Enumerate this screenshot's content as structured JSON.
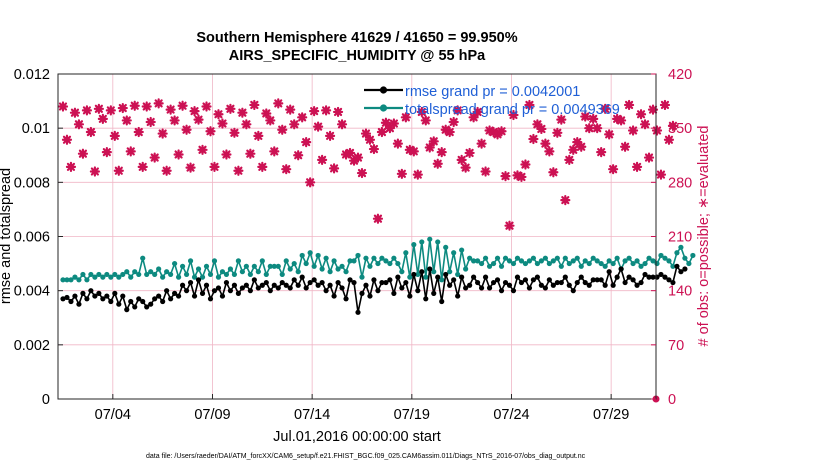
{
  "chart_data": {
    "type": "line",
    "title": "Southern Hemisphere 41629 / 41650 = 99.950%",
    "subtitle": "AIRS_SPECIFIC_HUMIDITY @ 55 hPa",
    "xlabel": "Jul.01,2016 00:00:00 start",
    "ylabel": "rmse and totalspread",
    "ylabel_right": "# of obs: o=possible; ∗=evaluated",
    "x_tick_labels": [
      "07/04",
      "07/09",
      "07/14",
      "07/19",
      "07/24",
      "07/29"
    ],
    "x_tick_days": [
      3.5,
      8.5,
      13.5,
      18.5,
      23.5,
      28.5
    ],
    "xlim": [
      0.75,
      30.75
    ],
    "ylim": [
      0,
      0.012
    ],
    "y_ticks": [
      "0",
      "0.002",
      "0.004",
      "0.006",
      "0.008",
      "0.01",
      "0.012"
    ],
    "ylim_right": [
      0,
      420
    ],
    "y_ticks_right": [
      "0",
      "70",
      "140",
      "210",
      "280",
      "350",
      "420"
    ],
    "grid": true,
    "legend": "top-right",
    "footnote": "data file: /Users/raeder/DAI/ATM_forcXX/CAM6_setup/f.e21.FHIST_BGC.f09_025.CAM6assim.011/Diags_NTrS_2016-07/obs_diag_output.nc",
    "colors": {
      "rmse": "#000000",
      "totalspread": "#0d8a80",
      "obs": "#cc1153"
    },
    "series": [
      {
        "name": "rmse grand pr = 0.0042001",
        "axis": "left",
        "values": [
          0.0037,
          0.00375,
          0.0036,
          0.0038,
          0.0035,
          0.0039,
          0.0037,
          0.004,
          0.0038,
          0.0039,
          0.0037,
          0.0038,
          0.0036,
          0.0039,
          0.0035,
          0.0038,
          0.0033,
          0.0036,
          0.0034,
          0.0037,
          0.0036,
          0.0034,
          0.0035,
          0.0037,
          0.0038,
          0.0036,
          0.004,
          0.0037,
          0.0039,
          0.0038,
          0.0042,
          0.004,
          0.0043,
          0.0038,
          0.0044,
          0.0039,
          0.0042,
          0.0037,
          0.004,
          0.0041,
          0.0038,
          0.0043,
          0.004,
          0.0042,
          0.0039,
          0.0041,
          0.0042,
          0.004,
          0.0044,
          0.0041,
          0.0042,
          0.0043,
          0.004,
          0.0042,
          0.0041,
          0.0043,
          0.0042,
          0.0041,
          0.0044,
          0.0042,
          0.0045,
          0.0041,
          0.0043,
          0.0044,
          0.0042,
          0.0043,
          0.004,
          0.0042,
          0.0038,
          0.0043,
          0.0041,
          0.0037,
          0.0044,
          0.0043,
          0.0032,
          0.0039,
          0.0042,
          0.0038,
          0.0044,
          0.004,
          0.0043,
          0.0043,
          0.0044,
          0.0039,
          0.0045,
          0.0041,
          0.0043,
          0.0038,
          0.0046,
          0.004,
          0.0047,
          0.0037,
          0.0048,
          0.0039,
          0.0045,
          0.0036,
          0.0046,
          0.0042,
          0.0044,
          0.0038,
          0.0045,
          0.0041,
          0.0042,
          0.0045,
          0.0043,
          0.0041,
          0.0045,
          0.0041,
          0.0043,
          0.0044,
          0.004,
          0.0043,
          0.0042,
          0.004,
          0.0045,
          0.0043,
          0.0044,
          0.0041,
          0.0044,
          0.0045,
          0.0042,
          0.0041,
          0.0044,
          0.0042,
          0.0043,
          0.0043,
          0.0045,
          0.0042,
          0.004,
          0.0043,
          0.0045,
          0.0043,
          0.0042,
          0.0044,
          0.0044,
          0.0044,
          0.0042,
          0.0047,
          0.0042,
          0.0045,
          0.0048,
          0.0043,
          0.0045,
          0.0044,
          0.0042,
          0.0043,
          0.0046,
          0.0045,
          0.0045,
          0.0045,
          0.0046,
          0.0045,
          0.0044,
          0.0043,
          0.0049,
          0.0047,
          0.0048
        ]
      },
      {
        "name": "totalspread grand pr = 0.0049369",
        "axis": "left",
        "values": [
          0.0044,
          0.0044,
          0.0044,
          0.0045,
          0.0044,
          0.0046,
          0.0044,
          0.0046,
          0.0045,
          0.0046,
          0.0045,
          0.0046,
          0.0045,
          0.0046,
          0.0045,
          0.0046,
          0.0047,
          0.0045,
          0.0047,
          0.0046,
          0.0052,
          0.0046,
          0.0047,
          0.0046,
          0.0048,
          0.0045,
          0.0047,
          0.0046,
          0.005,
          0.0045,
          0.0049,
          0.0046,
          0.0051,
          0.0045,
          0.0048,
          0.0045,
          0.0049,
          0.0046,
          0.0051,
          0.0045,
          0.0047,
          0.0046,
          0.0048,
          0.0046,
          0.0051,
          0.0047,
          0.0049,
          0.0046,
          0.0049,
          0.0047,
          0.0051,
          0.0046,
          0.0049,
          0.0049,
          0.0049,
          0.0046,
          0.0051,
          0.0048,
          0.005,
          0.0047,
          0.0053,
          0.005,
          0.0054,
          0.0049,
          0.0053,
          0.0048,
          0.0052,
          0.0047,
          0.0051,
          0.0048,
          0.0049,
          0.0047,
          0.0051,
          0.0051,
          0.0053,
          0.0045,
          0.0052,
          0.0049,
          0.0052,
          0.005,
          0.0052,
          0.0051,
          0.005,
          0.0052,
          0.005,
          0.0047,
          0.0054,
          0.0045,
          0.0057,
          0.0046,
          0.0058,
          0.0045,
          0.0059,
          0.0047,
          0.0058,
          0.0044,
          0.0056,
          0.0047,
          0.0054,
          0.0046,
          0.0055,
          0.0048,
          0.0052,
          0.0051,
          0.0051,
          0.005,
          0.0052,
          0.0049,
          0.005,
          0.0052,
          0.0049,
          0.0052,
          0.0051,
          0.005,
          0.0052,
          0.0051,
          0.005,
          0.0051,
          0.0052,
          0.005,
          0.0051,
          0.0052,
          0.005,
          0.0051,
          0.0052,
          0.0049,
          0.0052,
          0.005,
          0.0051,
          0.0052,
          0.0049,
          0.0051,
          0.005,
          0.0052,
          0.0051,
          0.005,
          0.0049,
          0.0051,
          0.005,
          0.0052,
          0.0048,
          0.0051,
          0.0052,
          0.005,
          0.0051,
          0.0049,
          0.005,
          0.0052,
          0.0051,
          0.005,
          0.0053,
          0.0052,
          0.0051,
          0.0049,
          0.0054,
          0.0056,
          0.0052,
          0.005,
          0.0053
        ]
      },
      {
        "name": "obs evaluated",
        "axis": "right",
        "values": [
          378,
          335,
          300,
          370,
          355,
          317,
          373,
          345,
          294,
          375,
          362,
          319,
          373,
          340,
          295,
          376,
          360,
          320,
          379,
          345,
          300,
          378,
          358,
          312,
          382,
          343,
          295,
          374,
          360,
          316,
          379,
          348,
          299,
          372,
          361,
          322,
          378,
          346,
          300,
          368,
          356,
          316,
          375,
          344,
          295,
          370,
          355,
          317,
          380,
          340,
          300,
          369,
          360,
          320,
          382,
          348,
          297,
          374,
          355,
          315,
          364,
          332,
          280,
          372,
          352,
          309,
          373,
          340,
          298,
          371,
          355,
          316,
          318,
          308,
          312,
          292,
          343,
          335,
          323,
          233,
          345,
          357,
          350,
          356,
          330,
          291,
          364,
          322,
          320,
          290,
          371,
          360,
          325,
          333,
          304,
          319,
          348,
          345,
          358,
          373,
          309,
          299,
          318,
          364,
          371,
          330,
          294,
          347,
          345,
          342,
          346,
          288,
          224,
          367,
          289,
          287,
          303,
          380,
          336,
          355,
          349,
          330,
          320,
          293,
          344,
          361,
          257,
          309,
          322,
          332,
          326,
          365,
          350,
          362,
          350,
          319,
          375,
          342,
          297,
          362,
          360,
          326,
          380,
          347,
          300,
          368,
          355,
          312,
          374,
          347,
          290,
          380,
          335,
          353
        ]
      }
    ]
  }
}
